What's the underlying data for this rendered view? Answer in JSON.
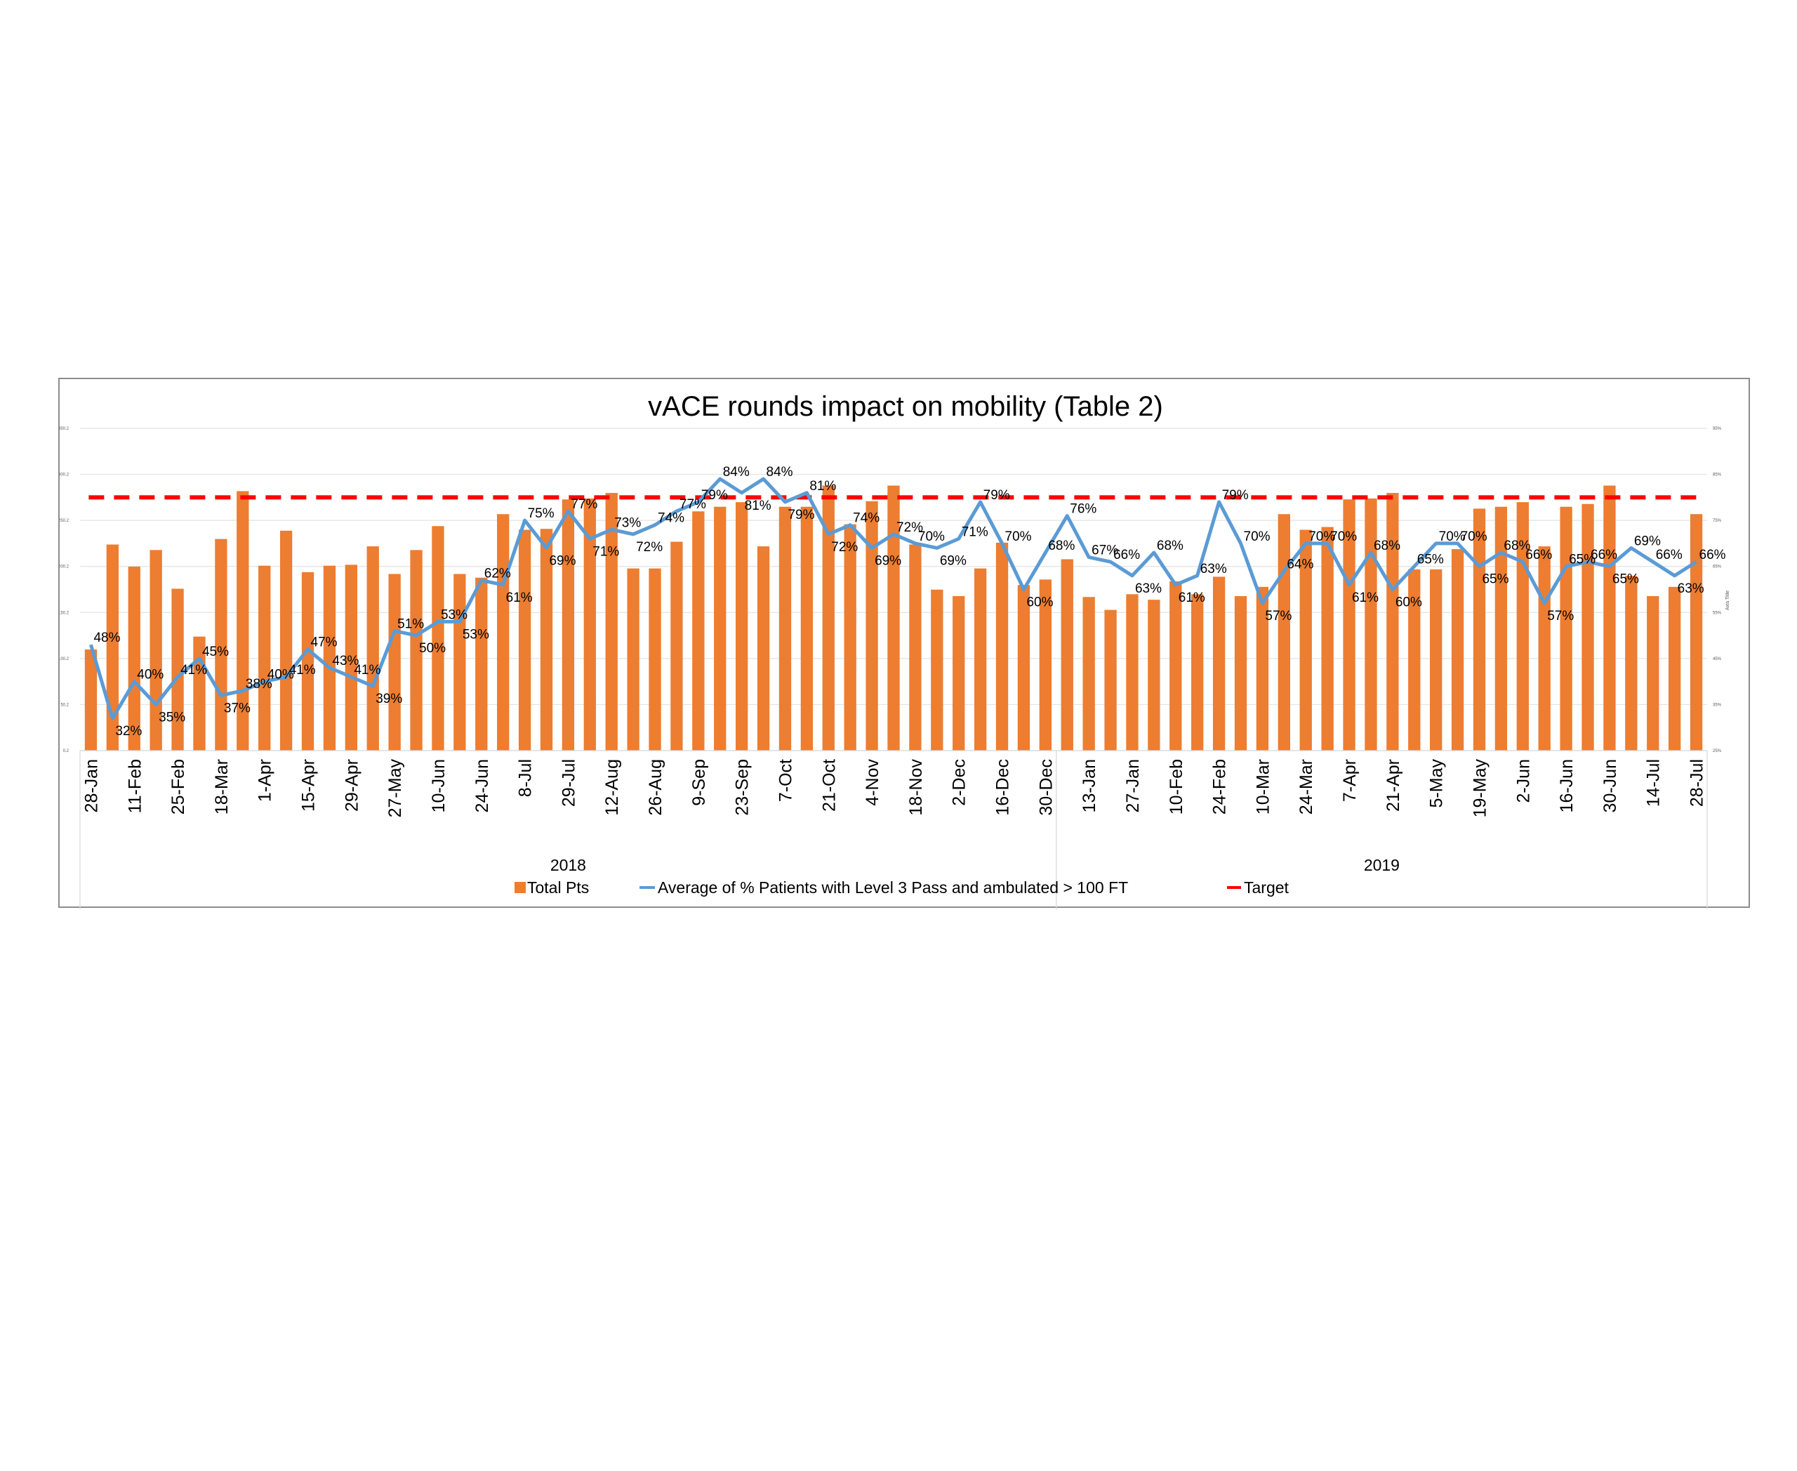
{
  "chart_data": {
    "type": "bar+line",
    "title": "vACE rounds impact on mobility (Table 2)",
    "y_left": {
      "ticks": [
        "0.2",
        "50.2",
        "100.2",
        "150.2",
        "200.2",
        "250.2",
        "300.2",
        "350.2"
      ],
      "range": [
        0.2,
        350.2
      ]
    },
    "y_right": {
      "ticks": [
        "25%",
        "35%",
        "45%",
        "55%",
        "65%",
        "75%",
        "85%",
        "95%"
      ],
      "range": [
        25,
        95
      ],
      "title": "Axis Title"
    },
    "categories": [
      "28-Jan",
      "",
      "11-Feb",
      "",
      "25-Feb",
      "",
      "18-Mar",
      "",
      "1-Apr",
      "",
      "15-Apr",
      "",
      "29-Apr",
      "",
      "27-May",
      "",
      "10-Jun",
      "",
      "24-Jun",
      "",
      "8-Jul",
      "",
      "29-Jul",
      "",
      "12-Aug",
      "",
      "26-Aug",
      "",
      "9-Sep",
      "",
      "23-Sep",
      "",
      "7-Oct",
      "",
      "21-Oct",
      "",
      "4-Nov",
      "",
      "18-Nov",
      "",
      "2-Dec",
      "",
      "16-Dec",
      "",
      "30-Dec",
      "",
      "13-Jan",
      "",
      "27-Jan",
      "",
      "10-Feb",
      "",
      "24-Feb",
      "",
      "10-Mar",
      "",
      "24-Mar",
      "",
      "7-Apr",
      "",
      "21-Apr",
      "",
      "5-May",
      "",
      "19-May",
      "",
      "2-Jun",
      "",
      "16-Jun",
      "",
      "30-Jun",
      "",
      "14-Jul",
      "",
      "28-Jul"
    ],
    "groups": [
      {
        "label": "2018",
        "count": 45
      },
      {
        "label": "2019",
        "count": 30
      }
    ],
    "series": [
      {
        "name": "Total Pts",
        "type": "bar",
        "axis": "left",
        "color": "#ED7D31",
        "values": [
          110,
          224,
          200,
          218,
          176,
          124,
          230,
          282,
          201,
          239,
          194,
          201,
          202,
          222,
          192,
          218,
          244,
          192,
          188,
          257,
          240,
          241,
          273,
          274,
          280,
          198,
          198,
          227,
          260,
          265,
          270,
          222,
          265,
          265,
          288,
          246,
          271,
          288,
          224,
          175,
          168,
          198,
          226,
          180,
          186,
          208,
          167,
          153,
          170,
          164,
          184,
          170,
          189,
          168,
          178,
          257,
          240,
          243,
          273,
          274,
          280,
          197,
          197,
          219,
          263,
          265,
          270,
          222,
          265,
          268,
          288,
          190,
          168,
          178,
          257
        ]
      },
      {
        "name": "Average of % Patients with Level 3 Pass and ambulated > 100 FT",
        "type": "line",
        "axis": "right",
        "color": "#5B9BD5",
        "values": [
          48,
          32,
          40,
          35,
          41,
          45,
          37,
          38,
          40,
          41,
          47,
          43,
          41,
          39,
          51,
          50,
          53,
          53,
          62,
          61,
          75,
          69,
          77,
          71,
          73,
          72,
          74,
          77,
          79,
          84,
          81,
          84,
          79,
          81,
          72,
          74,
          69,
          72,
          70,
          69,
          71,
          79,
          70,
          60,
          68,
          76,
          67,
          66,
          63,
          68,
          61,
          63,
          79,
          70,
          57,
          64,
          70,
          70,
          61,
          68,
          60,
          65,
          70,
          70,
          65,
          68,
          66,
          57,
          65,
          66,
          65,
          69,
          66,
          63,
          66
        ],
        "labels": [
          "48%",
          "32%",
          "40%",
          "35%",
          "41%",
          "45%",
          "37%",
          "38%",
          "40%",
          "41%",
          "47%",
          "43%",
          "41%",
          "39%",
          "51%",
          "50%",
          "53%",
          "53%",
          "62%",
          "61%",
          "75%",
          "69%",
          "77%",
          "71%",
          "73%",
          "72%",
          "74%",
          "77%",
          "79%",
          "84%",
          "81%",
          "84%",
          "79%",
          "81%",
          "72%",
          "74%",
          "69%",
          "72%",
          "70%",
          "69%",
          "71%",
          "79%",
          "70%",
          "60%",
          "68%",
          "76%",
          "67%",
          "66%",
          "63%",
          "68%",
          "61%",
          "63%",
          "79%",
          "70%",
          "57%",
          "64%",
          "70%",
          "70%",
          "61%",
          "68%",
          "60%",
          "65%",
          "70%",
          "70%",
          "65%",
          "68%",
          "66%",
          "57%",
          "65%",
          "66%",
          "65%",
          "69%",
          "66%",
          "63%",
          "66%"
        ]
      },
      {
        "name": "Target",
        "type": "line-dashed",
        "axis": "right",
        "color": "#FF0000",
        "value": 80
      }
    ],
    "legend": {
      "placement": "bottom",
      "items": [
        "Total Pts",
        "Average of % Patients with Level 3 Pass and ambulated > 100 FT",
        "Target"
      ]
    },
    "grid": true
  }
}
